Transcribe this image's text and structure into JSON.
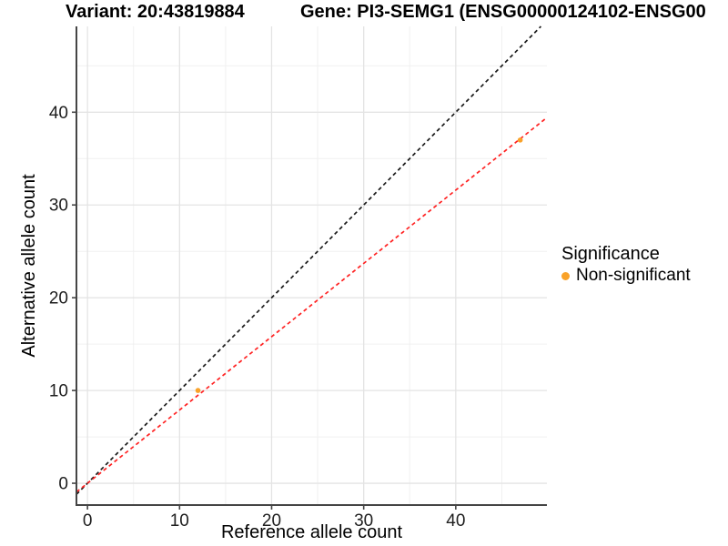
{
  "header": {
    "left_title": "Variant: 20:43819884",
    "right_title": "Gene: PI3-SEMG1 (ENSG00000124102-ENSG00"
  },
  "legend": {
    "title": "Significance",
    "items": [
      {
        "label": "Non-significant",
        "color": "#F9A229"
      }
    ]
  },
  "chart_data": {
    "type": "scatter",
    "xlabel": "Reference allele count",
    "ylabel": "Alternative allele count",
    "x_ticks": [
      0,
      10,
      20,
      30,
      40
    ],
    "y_ticks": [
      0,
      10,
      20,
      30,
      40
    ],
    "x_minor_ticks": [
      5,
      15,
      25,
      35,
      45
    ],
    "y_minor_ticks": [
      5,
      15,
      25,
      35,
      45
    ],
    "xlim": [
      -1.2,
      49.9
    ],
    "ylim": [
      -2.35,
      49.25
    ],
    "grid": true,
    "legend_position": "right",
    "series": [
      {
        "name": "Non-significant",
        "color": "#F9A229",
        "points": [
          {
            "x": 12,
            "y": 10
          },
          {
            "x": 47,
            "y": 37
          }
        ]
      }
    ],
    "lines": [
      {
        "name": "identity",
        "slope": 1.0,
        "intercept": 0,
        "color": "#1A1A1A",
        "style": "dashed"
      },
      {
        "name": "fit",
        "slope": 0.79,
        "intercept": 0,
        "color": "#FF2222",
        "style": "dashed"
      }
    ]
  },
  "colors": {
    "point_orange": "#F9A229",
    "line_red": "#FF2222",
    "line_black": "#1A1A1A",
    "grid_major": "#E4E4E4",
    "grid_minor": "#F0F0F0",
    "axis_line": "#454545",
    "tick_text": "#1F1F1F",
    "title_text": "#000000"
  }
}
